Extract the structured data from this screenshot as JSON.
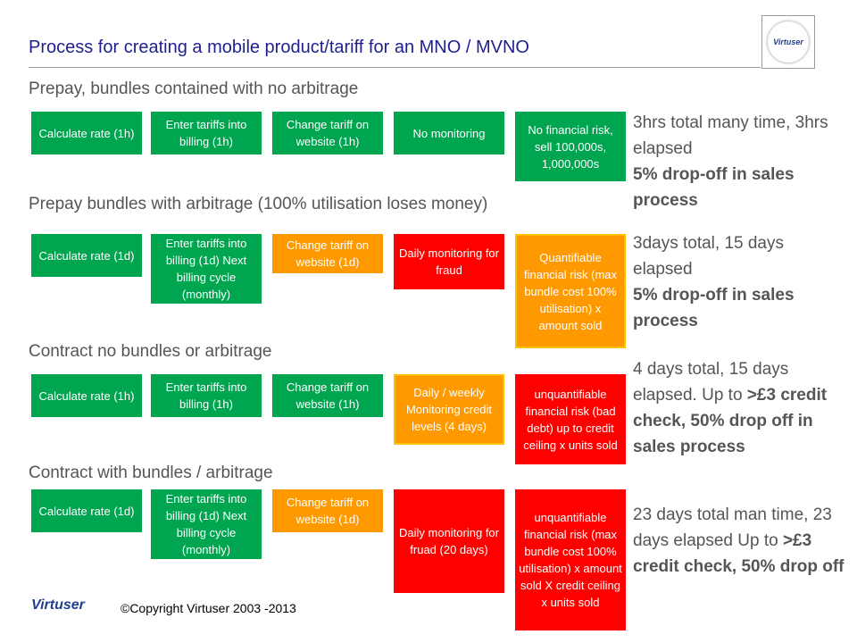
{
  "title": "Process for creating a mobile product/tariff for an MNO / MVNO",
  "logo_text": "Virtuser",
  "footer": {
    "logo_text": "Virtuser",
    "copyright": "©Copyright Virtuser 2003 -2013"
  },
  "colors": {
    "green": "#00a550",
    "orange": "#ff9900",
    "red": "#ff0000",
    "title": "#1f1f8f"
  },
  "rows": [
    {
      "label": "Prepay, bundles contained with no arbitrage",
      "steps": [
        {
          "text": "Calculate  rate (1h)",
          "color": "green"
        },
        {
          "text": "Enter tariffs into billing (1h)",
          "color": "green"
        },
        {
          "text": "Change tariff on website (1h)",
          "color": "green"
        },
        {
          "text": "No monitoring",
          "color": "green"
        },
        {
          "text": "No financial risk, sell 100,000s, 1,000,000s",
          "color": "green"
        }
      ],
      "note_plain": "3hrs total many time, 3hrs elapsed",
      "note_bold": "5% drop-off in sales process"
    },
    {
      "label": "Prepay bundles with arbitrage (100% utilisation loses money)",
      "steps": [
        {
          "text": "Calculate  rate (1d)",
          "color": "green"
        },
        {
          "text": "Enter tariffs into billing (1d) Next billing cycle (monthly)",
          "color": "green"
        },
        {
          "text": "Change tariff on website (1d)",
          "color": "orange"
        },
        {
          "text": "Daily monitoring  for fraud",
          "color": "red"
        },
        {
          "text": "Quantifiable financial risk (max bundle cost 100% utilisation) x amount  sold",
          "color": "orange"
        }
      ],
      "note_plain": "3days total, 15 days elapsed",
      "note_bold": "5% drop-off in sales process"
    },
    {
      "label": "Contract no bundles or arbitrage",
      "steps": [
        {
          "text": "Calculate  rate (1h)",
          "color": "green"
        },
        {
          "text": "Enter tariffs into billing (1h)",
          "color": "green"
        },
        {
          "text": "Change tariff on website (1h)",
          "color": "green"
        },
        {
          "text": "Daily / weekly Monitoring credit levels (4 days)",
          "color": "orange"
        },
        {
          "text": "unquantifiable financial risk (bad debt) up to credit ceiling x units sold",
          "color": "red"
        }
      ],
      "note_plain": "4 days total, 15 days elapsed. Up to",
      "note_bold": ">£3 credit check, 50% drop off in sales process"
    },
    {
      "label": "Contract with bundles / arbitrage",
      "steps": [
        {
          "text": "Calculate  rate (1d)",
          "color": "green"
        },
        {
          "text": "Enter tariffs into billing (1d) Next billing cycle (monthly)",
          "color": "green"
        },
        {
          "text": "Change tariff on website (1d)",
          "color": "orange"
        },
        {
          "text": "Daily monitoring  for fruad (20  days)",
          "color": "red"
        },
        {
          "text": "unquantifiable financial risk (max bundle cost 100% utilisation) x amount  sold X credit ceiling x units sold",
          "color": "red"
        }
      ],
      "note_plain": "23 days total man time, 23 days elapsed Up to",
      "note_bold": ">£3 credit check, 50% drop off"
    }
  ]
}
